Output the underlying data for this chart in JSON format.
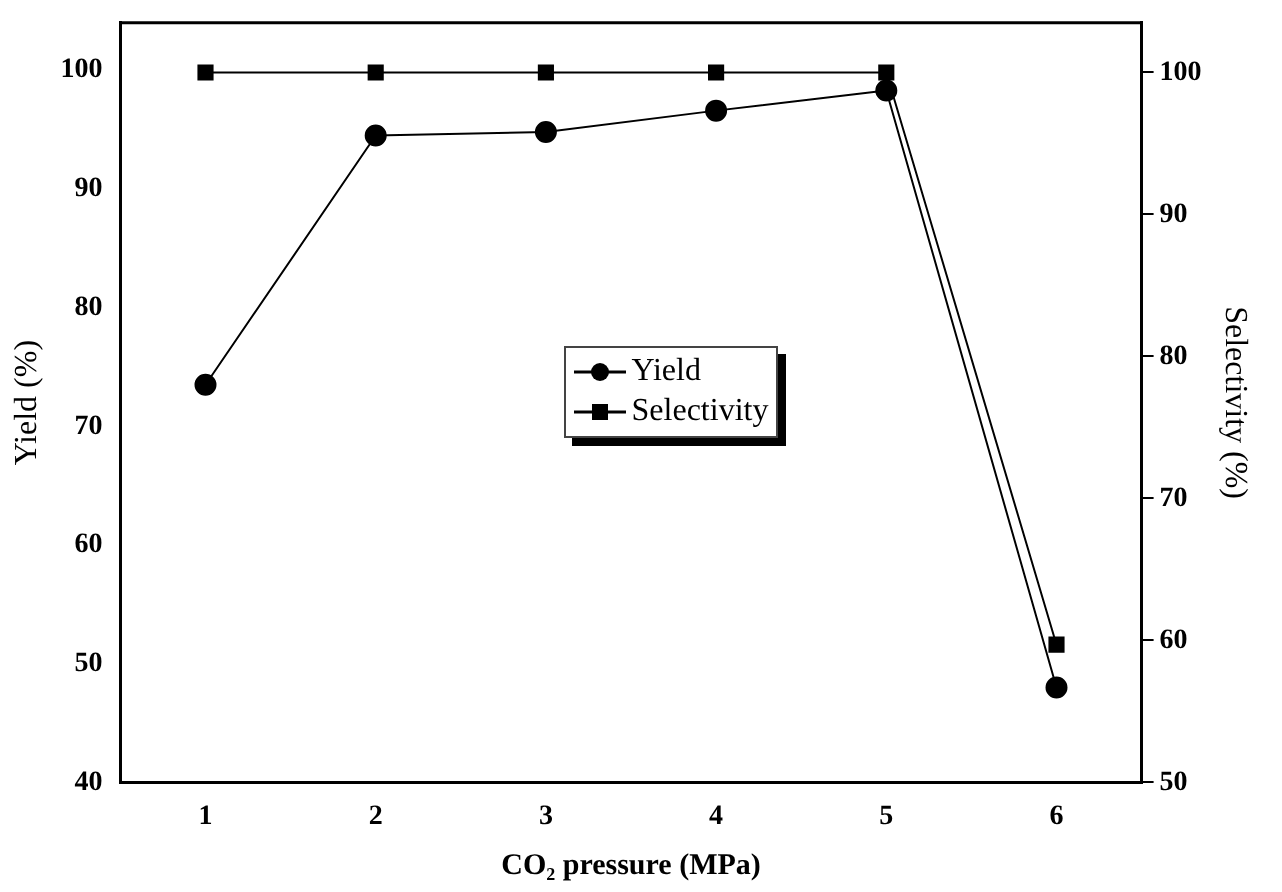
{
  "chart_data": {
    "type": "line",
    "xlabel": "CO₂ pressure (MPa)",
    "ylabel": "Yield (%)",
    "y2label": "Selectivity (%)",
    "x": [
      1,
      2,
      3,
      4,
      5,
      6
    ],
    "xlim": [
      0.5,
      6.5
    ],
    "xticks": [
      1,
      2,
      3,
      4,
      5,
      6
    ],
    "ylim": [
      40,
      104
    ],
    "yticks": [
      40,
      50,
      60,
      70,
      80,
      90,
      100
    ],
    "y2lim": [
      50,
      103.5
    ],
    "y2ticks": [
      50,
      60,
      70,
      80,
      90,
      100
    ],
    "series": [
      {
        "name": "Yield",
        "color": "#000000",
        "marker": "circle",
        "values": [
          73.5,
          94.5,
          94.8,
          96.6,
          98.3,
          48.0
        ]
      },
      {
        "name": "Selectivity",
        "color": "#000000",
        "marker": "square",
        "axis": "y2",
        "values": [
          100,
          100,
          100,
          100,
          100,
          59.7
        ]
      }
    ],
    "legend": "center",
    "grid": false
  }
}
